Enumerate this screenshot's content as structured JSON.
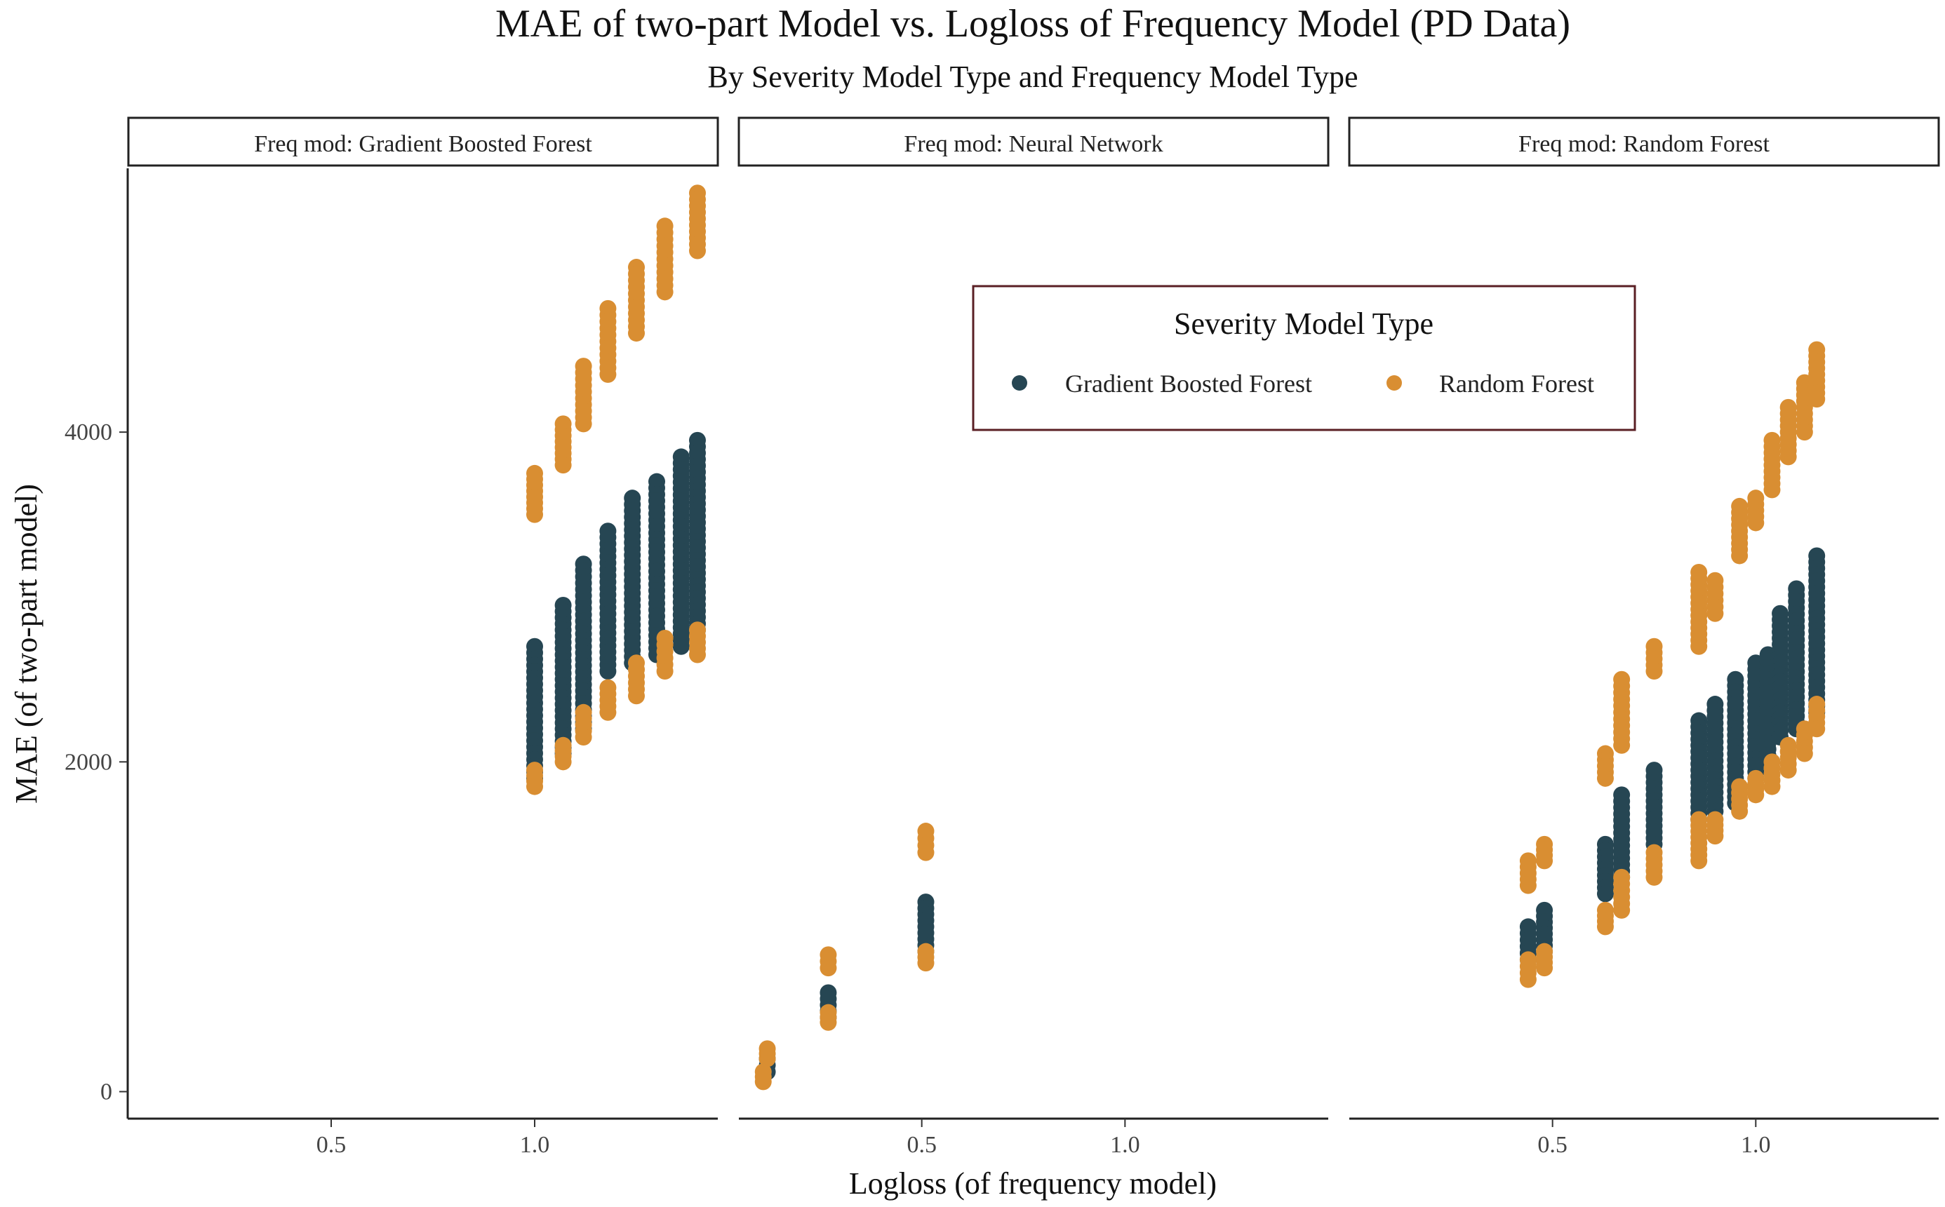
{
  "chart_data": {
    "type": "scatter",
    "title": "MAE of two-part Model vs. Logloss of Frequency Model (PD Data)",
    "subtitle": "By Severity Model Type and Frequency Model Type",
    "xlabel": "Logloss (of frequency model)",
    "ylabel": "MAE (of two-part model)",
    "ylim": [
      -100,
      5600
    ],
    "y_ticks": [
      0,
      2000,
      4000
    ],
    "legend": {
      "title": "Severity Model Type",
      "position": "top-right",
      "entries": [
        {
          "name": "Gradient Boosted Forest",
          "color": "#264653"
        },
        {
          "name": "Random Forest",
          "color": "#D98E32"
        }
      ]
    },
    "panels": [
      {
        "strip": "Freq mod: Gradient Boosted Forest",
        "xlim": [
          0.0,
          1.45
        ],
        "x_ticks": [
          0.5,
          1.0
        ],
        "series": [
          {
            "name": "Gradient Boosted Forest",
            "points": [
              {
                "x": 1.0,
                "y_min": 1900,
                "y_max": 2700
              },
              {
                "x": 1.07,
                "y_min": 2050,
                "y_max": 2950
              },
              {
                "x": 1.12,
                "y_min": 2200,
                "y_max": 3200
              },
              {
                "x": 1.18,
                "y_min": 2550,
                "y_max": 3400
              },
              {
                "x": 1.24,
                "y_min": 2600,
                "y_max": 3600
              },
              {
                "x": 1.3,
                "y_min": 2650,
                "y_max": 3700
              },
              {
                "x": 1.36,
                "y_min": 2700,
                "y_max": 3850
              },
              {
                "x": 1.4,
                "y_min": 2800,
                "y_max": 3950
              }
            ]
          },
          {
            "name": "Random Forest",
            "points": [
              {
                "x": 1.0,
                "y_min": 1850,
                "y_max": 1950
              },
              {
                "x": 1.0,
                "y_min": 3500,
                "y_max": 3750
              },
              {
                "x": 1.07,
                "y_min": 2000,
                "y_max": 2100
              },
              {
                "x": 1.07,
                "y_min": 3800,
                "y_max": 4050
              },
              {
                "x": 1.12,
                "y_min": 2150,
                "y_max": 2300
              },
              {
                "x": 1.12,
                "y_min": 4050,
                "y_max": 4400
              },
              {
                "x": 1.18,
                "y_min": 2300,
                "y_max": 2450
              },
              {
                "x": 1.18,
                "y_min": 4350,
                "y_max": 4750
              },
              {
                "x": 1.25,
                "y_min": 2400,
                "y_max": 2600
              },
              {
                "x": 1.25,
                "y_min": 4600,
                "y_max": 5000
              },
              {
                "x": 1.32,
                "y_min": 2550,
                "y_max": 2750
              },
              {
                "x": 1.32,
                "y_min": 4850,
                "y_max": 5250
              },
              {
                "x": 1.4,
                "y_min": 2650,
                "y_max": 2800
              },
              {
                "x": 1.4,
                "y_min": 5100,
                "y_max": 5450
              }
            ]
          }
        ]
      },
      {
        "strip": "Freq mod: Neural Network",
        "xlim": [
          0.05,
          1.5
        ],
        "x_ticks": [
          0.5,
          1.0
        ],
        "series": [
          {
            "name": "Gradient Boosted Forest",
            "points": [
              {
                "x": 0.12,
                "y_min": 120,
                "y_max": 200
              },
              {
                "x": 0.27,
                "y_min": 450,
                "y_max": 600
              },
              {
                "x": 0.51,
                "y_min": 850,
                "y_max": 1150
              }
            ]
          },
          {
            "name": "Random Forest",
            "points": [
              {
                "x": 0.11,
                "y_min": 60,
                "y_max": 120
              },
              {
                "x": 0.12,
                "y_min": 200,
                "y_max": 260
              },
              {
                "x": 0.27,
                "y_min": 420,
                "y_max": 480
              },
              {
                "x": 0.27,
                "y_min": 750,
                "y_max": 830
              },
              {
                "x": 0.51,
                "y_min": 780,
                "y_max": 850
              },
              {
                "x": 0.51,
                "y_min": 1450,
                "y_max": 1580
              }
            ]
          }
        ]
      },
      {
        "strip": "Freq mod: Random Forest",
        "xlim": [
          0.0,
          1.45
        ],
        "x_ticks": [
          0.5,
          1.0
        ],
        "series": [
          {
            "name": "Gradient Boosted Forest",
            "points": [
              {
                "x": 0.44,
                "y_min": 800,
                "y_max": 1000
              },
              {
                "x": 0.48,
                "y_min": 850,
                "y_max": 1100
              },
              {
                "x": 0.63,
                "y_min": 1200,
                "y_max": 1500
              },
              {
                "x": 0.67,
                "y_min": 1300,
                "y_max": 1800
              },
              {
                "x": 0.75,
                "y_min": 1500,
                "y_max": 1950
              },
              {
                "x": 0.86,
                "y_min": 1650,
                "y_max": 2250
              },
              {
                "x": 0.9,
                "y_min": 1700,
                "y_max": 2350
              },
              {
                "x": 0.95,
                "y_min": 1750,
                "y_max": 2500
              },
              {
                "x": 1.0,
                "y_min": 1900,
                "y_max": 2600
              },
              {
                "x": 1.03,
                "y_min": 2000,
                "y_max": 2650
              },
              {
                "x": 1.06,
                "y_min": 2150,
                "y_max": 2900
              },
              {
                "x": 1.1,
                "y_min": 2200,
                "y_max": 3050
              },
              {
                "x": 1.15,
                "y_min": 2300,
                "y_max": 3250
              }
            ]
          },
          {
            "name": "Random Forest",
            "points": [
              {
                "x": 0.44,
                "y_min": 680,
                "y_max": 800
              },
              {
                "x": 0.44,
                "y_min": 1250,
                "y_max": 1400
              },
              {
                "x": 0.48,
                "y_min": 750,
                "y_max": 850
              },
              {
                "x": 0.48,
                "y_min": 1400,
                "y_max": 1500
              },
              {
                "x": 0.63,
                "y_min": 1000,
                "y_max": 1100
              },
              {
                "x": 0.63,
                "y_min": 1900,
                "y_max": 2050
              },
              {
                "x": 0.67,
                "y_min": 1100,
                "y_max": 1300
              },
              {
                "x": 0.67,
                "y_min": 2100,
                "y_max": 2500
              },
              {
                "x": 0.75,
                "y_min": 1300,
                "y_max": 1450
              },
              {
                "x": 0.75,
                "y_min": 2550,
                "y_max": 2700
              },
              {
                "x": 0.86,
                "y_min": 1400,
                "y_max": 1650
              },
              {
                "x": 0.86,
                "y_min": 2700,
                "y_max": 3150
              },
              {
                "x": 0.9,
                "y_min": 1550,
                "y_max": 1650
              },
              {
                "x": 0.9,
                "y_min": 2900,
                "y_max": 3100
              },
              {
                "x": 0.96,
                "y_min": 1700,
                "y_max": 1850
              },
              {
                "x": 0.96,
                "y_min": 3250,
                "y_max": 3550
              },
              {
                "x": 1.0,
                "y_min": 1800,
                "y_max": 1900
              },
              {
                "x": 1.0,
                "y_min": 3450,
                "y_max": 3600
              },
              {
                "x": 1.04,
                "y_min": 1850,
                "y_max": 2000
              },
              {
                "x": 1.04,
                "y_min": 3650,
                "y_max": 3950
              },
              {
                "x": 1.08,
                "y_min": 1950,
                "y_max": 2100
              },
              {
                "x": 1.08,
                "y_min": 3850,
                "y_max": 4150
              },
              {
                "x": 1.12,
                "y_min": 2050,
                "y_max": 2200
              },
              {
                "x": 1.12,
                "y_min": 4000,
                "y_max": 4300
              },
              {
                "x": 1.15,
                "y_min": 2200,
                "y_max": 2350
              },
              {
                "x": 1.15,
                "y_min": 4200,
                "y_max": 4500
              }
            ]
          }
        ]
      }
    ]
  }
}
